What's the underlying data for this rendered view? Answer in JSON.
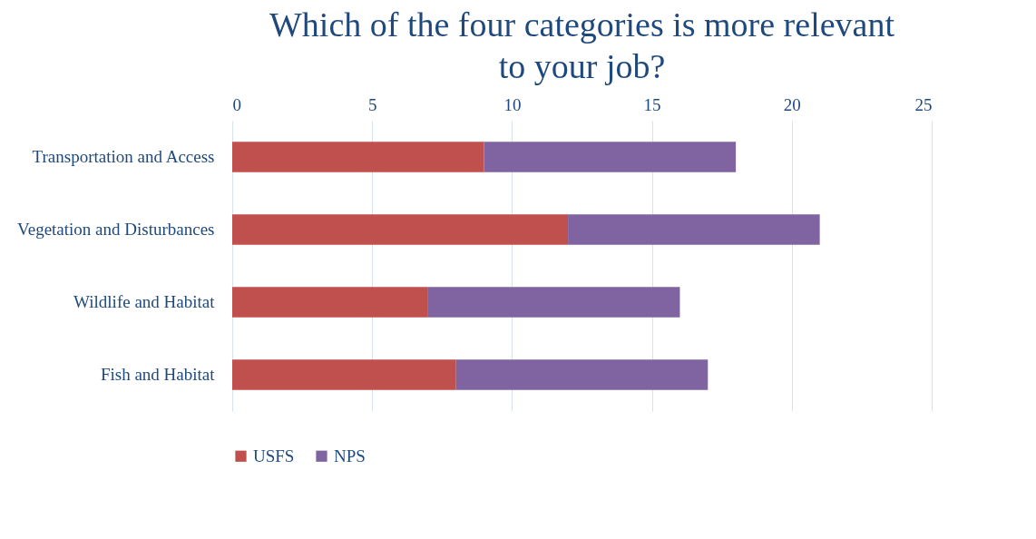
{
  "chart_data": {
    "type": "bar",
    "title": "Which of the four categories is more relevant to your job?",
    "orientation": "horizontal",
    "stacked": true,
    "categories": [
      "Transportation and Access",
      "Vegetation and Disturbances",
      "Wildlife and Habitat",
      "Fish and Habitat"
    ],
    "series": [
      {
        "name": "USFS",
        "color": "#c0504d",
        "values": [
          9,
          12,
          7,
          8
        ]
      },
      {
        "name": "NPS",
        "color": "#8064a2",
        "values": [
          9,
          9,
          9,
          9
        ]
      }
    ],
    "xlim": [
      0,
      25
    ],
    "xticks": [
      0,
      5,
      10,
      15,
      20,
      25
    ],
    "grid": "x",
    "legend": "bottom"
  }
}
